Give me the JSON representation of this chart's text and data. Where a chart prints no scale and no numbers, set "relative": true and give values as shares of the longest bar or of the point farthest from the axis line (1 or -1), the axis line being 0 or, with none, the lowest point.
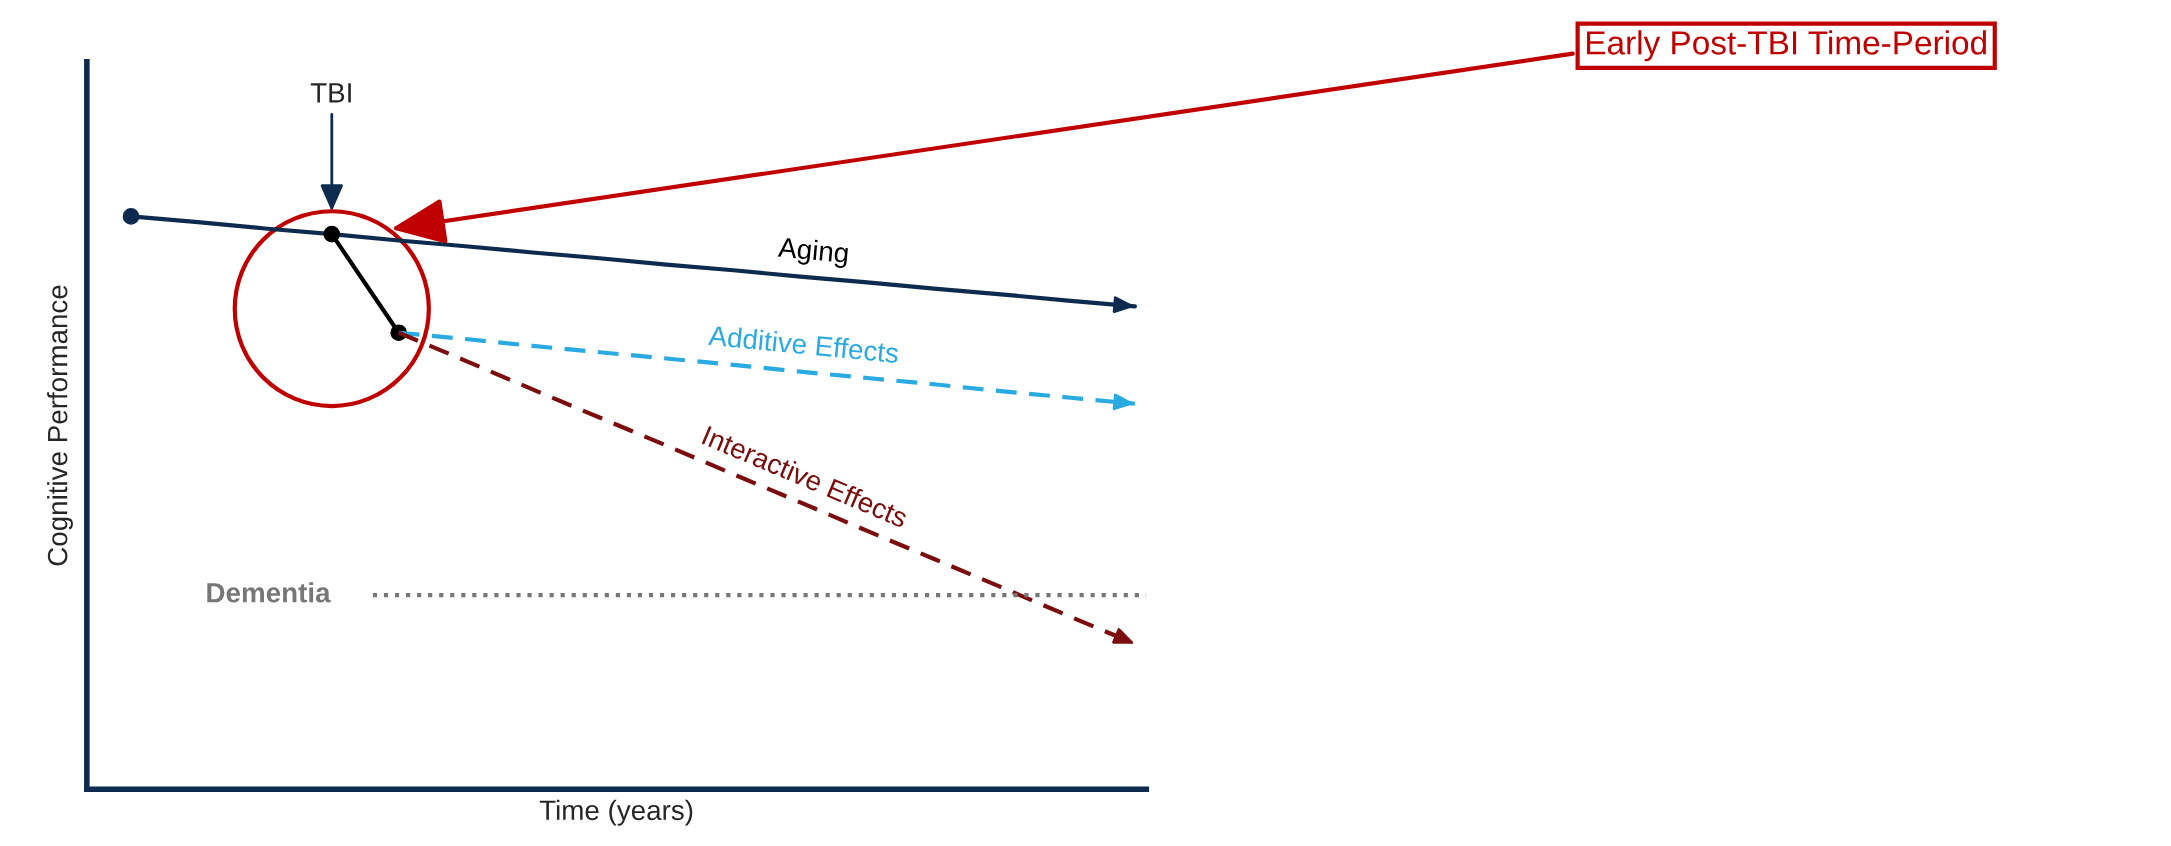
{
  "chart_data": {
    "type": "line",
    "relative": true,
    "xlabel": "Time (years)",
    "ylabel": "Cognitive Performance",
    "categories": [
      null,
      null,
      null,
      null,
      null,
      null,
      null,
      null,
      null,
      null,
      null,
      null,
      null,
      null,
      null,
      null
    ],
    "series": [
      {
        "name": "Aging",
        "color": "#0d2b4e",
        "values": [
          1,
          0.99,
          0.979,
          0.969,
          0.958,
          0.948,
          0.937,
          0.927,
          0.916,
          0.906,
          0.895,
          0.885,
          0.874,
          0.864,
          0.853,
          0.843
        ],
        "line_style": "solid"
      },
      {
        "color": "#000000",
        "values": [
          null,
          null,
          null,
          0.969,
          0.797,
          null,
          null,
          null,
          null,
          null,
          null,
          null,
          null,
          null,
          null,
          null
        ],
        "marker": "circle",
        "line_style": "solid"
      },
      {
        "name": "Additive Effects",
        "color": "#29aae1",
        "values": [
          null,
          null,
          null,
          null,
          0.797,
          0.786,
          0.774,
          0.763,
          0.752,
          0.741,
          0.729,
          0.718,
          0.707,
          0.695,
          0.684,
          0.673
        ],
        "line_style": "dashed"
      },
      {
        "name": "Interactive Effects",
        "color": "#7b0d0d",
        "values": [
          null,
          null,
          null,
          null,
          0.797,
          0.748,
          0.698,
          0.649,
          0.6,
          0.55,
          0.501,
          0.451,
          0.402,
          0.353,
          0.303,
          0.254
        ],
        "line_style": "dashed"
      }
    ],
    "ref_lines": [
      {
        "axis": "y",
        "value": 0.339,
        "label": "Dementia",
        "color": "#777777",
        "line_style": "dotted"
      }
    ],
    "annotations": [
      "TBI",
      "Early Post-TBI Time-Period"
    ]
  }
}
